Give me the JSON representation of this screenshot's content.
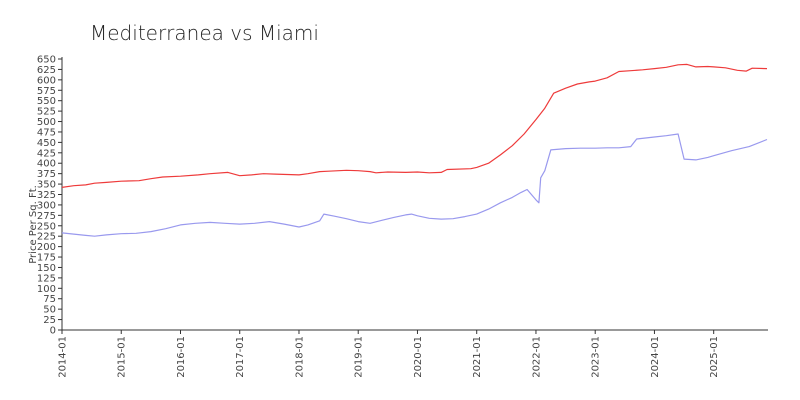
{
  "chart_data": {
    "type": "line",
    "title": "Mediterranea vs Miami",
    "xlabel": "",
    "ylabel": "Price Per Sq. Ft.",
    "ylim": [
      0,
      650
    ],
    "yticks": [
      0,
      25,
      50,
      75,
      100,
      125,
      150,
      175,
      200,
      225,
      250,
      275,
      300,
      325,
      350,
      375,
      400,
      425,
      450,
      475,
      500,
      525,
      550,
      575,
      600,
      625,
      650
    ],
    "xlim": [
      2014.0,
      2025.9167
    ],
    "xtick_labels": [
      "2014-01",
      "2015-01",
      "2016-01",
      "2017-01",
      "2018-01",
      "2019-01",
      "2020-01",
      "2021-01",
      "2022-01",
      "2023-01",
      "2024-01",
      "2025-01"
    ],
    "grid": false,
    "legend": "none",
    "series": [
      {
        "color": "#ee3b3b",
        "points": [
          [
            2014.0,
            342
          ],
          [
            2014.2,
            346
          ],
          [
            2014.4,
            348
          ],
          [
            2014.55,
            352
          ],
          [
            2014.75,
            354
          ],
          [
            2015.0,
            357
          ],
          [
            2015.3,
            358
          ],
          [
            2015.5,
            363
          ],
          [
            2015.7,
            367
          ],
          [
            2016.0,
            369
          ],
          [
            2016.3,
            372
          ],
          [
            2016.5,
            375
          ],
          [
            2016.8,
            378
          ],
          [
            2017.0,
            370
          ],
          [
            2017.2,
            372
          ],
          [
            2017.4,
            375
          ],
          [
            2017.6,
            374
          ],
          [
            2018.0,
            372
          ],
          [
            2018.15,
            375
          ],
          [
            2018.35,
            380
          ],
          [
            2018.5,
            381
          ],
          [
            2018.8,
            383
          ],
          [
            2019.0,
            382
          ],
          [
            2019.2,
            380
          ],
          [
            2019.3,
            377
          ],
          [
            2019.5,
            379
          ],
          [
            2019.8,
            378
          ],
          [
            2020.0,
            379
          ],
          [
            2020.2,
            377
          ],
          [
            2020.4,
            378
          ],
          [
            2020.5,
            385
          ],
          [
            2020.9,
            387
          ],
          [
            2021.0,
            390
          ],
          [
            2021.2,
            400
          ],
          [
            2021.4,
            420
          ],
          [
            2021.6,
            442
          ],
          [
            2021.8,
            470
          ],
          [
            2022.0,
            505
          ],
          [
            2022.15,
            532
          ],
          [
            2022.3,
            568
          ],
          [
            2022.5,
            580
          ],
          [
            2022.7,
            590
          ],
          [
            2022.9,
            595
          ],
          [
            2023.0,
            597
          ],
          [
            2023.2,
            605
          ],
          [
            2023.4,
            620
          ],
          [
            2023.6,
            622
          ],
          [
            2023.8,
            624
          ],
          [
            2024.0,
            627
          ],
          [
            2024.2,
            630
          ],
          [
            2024.4,
            636
          ],
          [
            2024.55,
            637
          ],
          [
            2024.7,
            631
          ],
          [
            2024.9,
            632
          ],
          [
            2025.0,
            631
          ],
          [
            2025.2,
            629
          ],
          [
            2025.4,
            623
          ],
          [
            2025.55,
            621
          ],
          [
            2025.65,
            628
          ],
          [
            2025.9,
            627
          ]
        ]
      },
      {
        "color": "#9999ee",
        "points": [
          [
            2014.0,
            233
          ],
          [
            2014.2,
            230
          ],
          [
            2014.4,
            227
          ],
          [
            2014.55,
            225
          ],
          [
            2014.75,
            228
          ],
          [
            2015.0,
            231
          ],
          [
            2015.25,
            232
          ],
          [
            2015.5,
            236
          ],
          [
            2015.75,
            243
          ],
          [
            2016.0,
            252
          ],
          [
            2016.25,
            256
          ],
          [
            2016.5,
            258
          ],
          [
            2016.75,
            256
          ],
          [
            2017.0,
            254
          ],
          [
            2017.25,
            256
          ],
          [
            2017.5,
            260
          ],
          [
            2017.75,
            254
          ],
          [
            2018.0,
            247
          ],
          [
            2018.15,
            252
          ],
          [
            2018.35,
            262
          ],
          [
            2018.42,
            278
          ],
          [
            2018.6,
            273
          ],
          [
            2018.8,
            267
          ],
          [
            2019.0,
            260
          ],
          [
            2019.2,
            256
          ],
          [
            2019.4,
            263
          ],
          [
            2019.6,
            270
          ],
          [
            2019.8,
            276
          ],
          [
            2019.9,
            278
          ],
          [
            2020.0,
            274
          ],
          [
            2020.2,
            268
          ],
          [
            2020.4,
            266
          ],
          [
            2020.6,
            267
          ],
          [
            2020.8,
            272
          ],
          [
            2021.0,
            278
          ],
          [
            2021.2,
            290
          ],
          [
            2021.4,
            305
          ],
          [
            2021.6,
            318
          ],
          [
            2021.75,
            330
          ],
          [
            2021.85,
            337
          ],
          [
            2022.0,
            312
          ],
          [
            2022.05,
            305
          ],
          [
            2022.08,
            365
          ],
          [
            2022.15,
            382
          ],
          [
            2022.25,
            432
          ],
          [
            2022.5,
            435
          ],
          [
            2022.75,
            436
          ],
          [
            2023.0,
            436
          ],
          [
            2023.2,
            437
          ],
          [
            2023.4,
            437
          ],
          [
            2023.6,
            440
          ],
          [
            2023.7,
            458
          ],
          [
            2024.0,
            463
          ],
          [
            2024.2,
            466
          ],
          [
            2024.4,
            470
          ],
          [
            2024.5,
            410
          ],
          [
            2024.7,
            408
          ],
          [
            2024.9,
            414
          ],
          [
            2025.0,
            418
          ],
          [
            2025.3,
            430
          ],
          [
            2025.6,
            440
          ],
          [
            2025.9,
            457
          ]
        ]
      }
    ]
  }
}
